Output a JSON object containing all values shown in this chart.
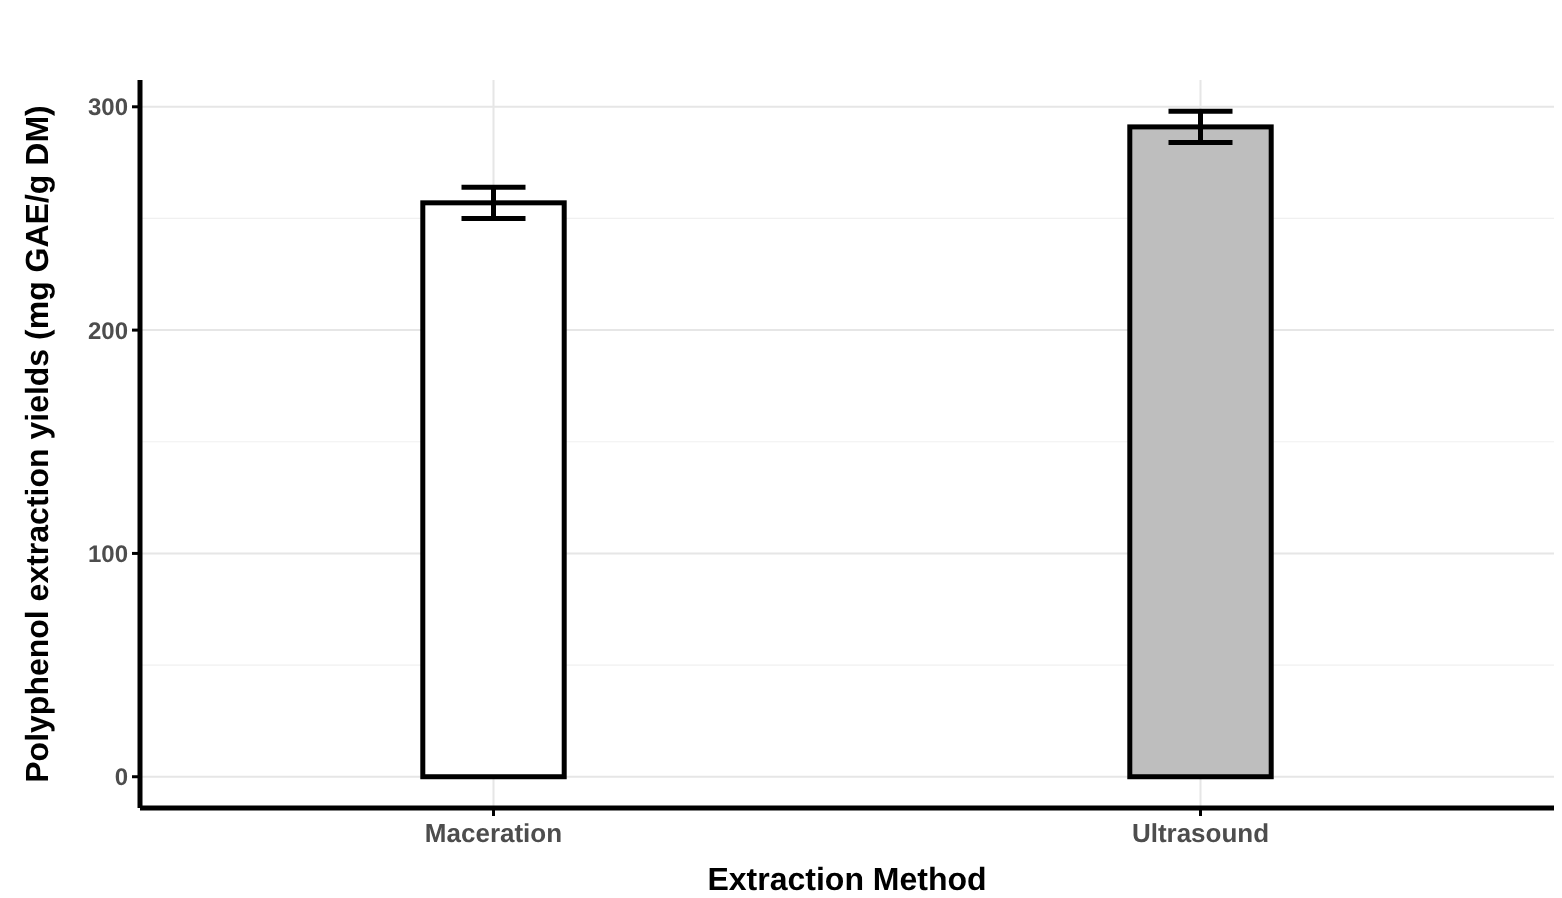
{
  "chart_data": {
    "type": "bar",
    "xlabel": "Extraction Method",
    "ylabel": "Polyphenol extraction yields (mg GAE/g DM)",
    "categories": [
      "Maceration",
      "Ultrasound"
    ],
    "values": [
      257,
      291
    ],
    "colors": [
      "#ffffff",
      "#bebebe"
    ],
    "errors": [
      7,
      7
    ],
    "ylim": [
      -14,
      312
    ],
    "yticks": [
      0,
      100,
      200,
      300
    ],
    "grid": true
  }
}
